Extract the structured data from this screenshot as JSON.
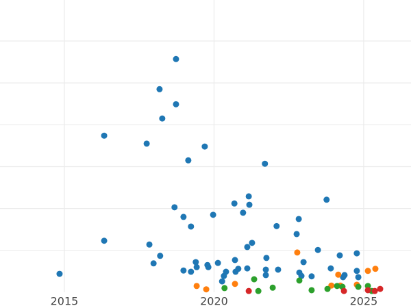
{
  "chart_data": {
    "type": "scatter",
    "grid": true,
    "xlim": [
      2012.85,
      2026.58
    ],
    "xticks": [
      2015,
      2020,
      2025
    ],
    "ylim": [
      0,
      6.98
    ],
    "yticks": [
      1,
      2,
      3,
      4,
      5,
      6
    ],
    "series": [
      {
        "color": "#1f77b4",
        "x": [
          2014.84,
          2016.33,
          2016.33,
          2017.75,
          2017.84,
          2017.98,
          2018.18,
          2018.2,
          2018.27,
          2018.68,
          2018.73,
          2018.73,
          2018.98,
          2018.98,
          2019.14,
          2019.23,
          2019.23,
          2019.39,
          2019.42,
          2019.69,
          2019.78,
          2019.81,
          2019.97,
          2020.13,
          2020.27,
          2020.33,
          2020.4,
          2020.68,
          2020.7,
          2020.72,
          2020.81,
          2020.97,
          2021.11,
          2021.11,
          2021.16,
          2021.18,
          2021.27,
          2021.7,
          2021.75,
          2021.73,
          2021.73,
          2022.09,
          2022.14,
          2022.76,
          2022.83,
          2022.85,
          2022.92,
          2022.99,
          2023.26,
          2023.47,
          2023.76,
          2023.9,
          2024.2,
          2024.31,
          2024.36,
          2024.77,
          2024.77,
          2024.82
        ],
        "values": [
          0.44,
          3.74,
          1.23,
          3.55,
          1.14,
          0.69,
          4.85,
          0.87,
          4.15,
          2.03,
          5.57,
          4.49,
          0.52,
          1.8,
          3.15,
          1.57,
          0.49,
          0.72,
          0.6,
          3.48,
          0.65,
          0.6,
          1.85,
          0.7,
          0.26,
          0.39,
          0.49,
          2.12,
          0.77,
          0.49,
          0.56,
          1.9,
          0.57,
          1.08,
          2.29,
          2.09,
          1.18,
          3.07,
          0.82,
          0.54,
          0.41,
          1.58,
          0.54,
          1.39,
          1.75,
          0.47,
          0.39,
          0.72,
          0.38,
          1.01,
          2.21,
          0.57,
          0.88,
          0.36,
          0.41,
          0.93,
          0.51,
          0.36
        ]
      },
      {
        "color": "#ff7f0e",
        "x": [
          2019.42,
          2019.74,
          2020.7,
          2022.78,
          2023.92,
          2024.15,
          2024.22,
          2024.77,
          2025.14,
          2025.39
        ],
        "values": [
          0.15,
          0.07,
          0.2,
          0.95,
          0.16,
          0.42,
          0.16,
          0.18,
          0.51,
          0.56
        ]
      },
      {
        "color": "#2ca02c",
        "x": [
          2020.35,
          2021.34,
          2021.48,
          2021.96,
          2022.85,
          2023.26,
          2023.79,
          2024.11,
          2024.29,
          2024.82,
          2025.14,
          2025.27
        ],
        "values": [
          0.1,
          0.31,
          0.03,
          0.11,
          0.28,
          0.05,
          0.08,
          0.15,
          0.13,
          0.13,
          0.15,
          0.03
        ]
      },
      {
        "color": "#d62728",
        "x": [
          2021.16,
          2024.34,
          2025.14,
          2025.37,
          2025.55
        ],
        "values": [
          0.03,
          0.03,
          0.05,
          0.03,
          0.08
        ]
      }
    ]
  }
}
